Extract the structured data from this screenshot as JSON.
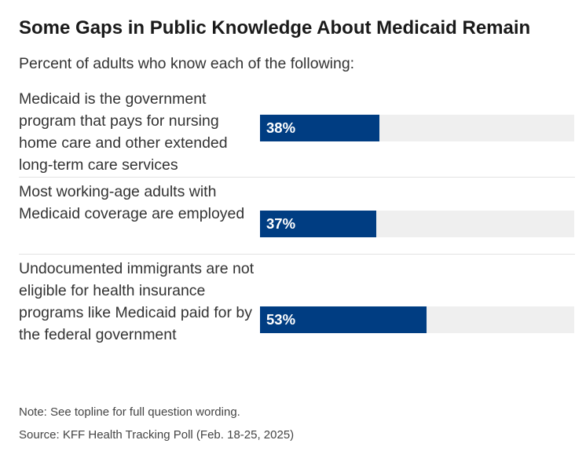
{
  "chart_data": {
    "type": "bar",
    "orientation": "horizontal",
    "title": "Some Gaps in Public Knowledge About Medicaid Remain",
    "subtitle": "Percent of adults who know each of the following:",
    "categories": [
      "Medicaid is the government program that pays for nursing home care and other extended long-term care services",
      "Most working-age adults with Medicaid coverage are employed",
      "Undocumented immigrants are not eligible for health insurance programs like Medicaid paid for by the federal government"
    ],
    "values": [
      38,
      37,
      53
    ],
    "value_labels": [
      "38%",
      "37%",
      "53%"
    ],
    "unit": "%",
    "xlim": [
      0,
      100
    ],
    "bar_color": "#003d82",
    "track_color": "#efefef",
    "note": "Note: See topline for full question wording.",
    "source": "Source: KFF Health Tracking Poll (Feb. 18-25, 2025)"
  }
}
